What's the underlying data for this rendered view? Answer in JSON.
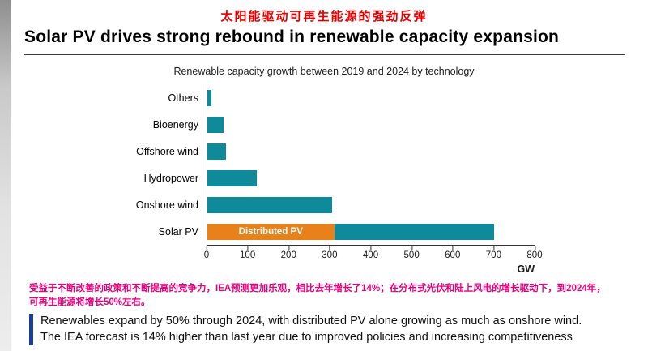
{
  "colors": {
    "accent_red": "#e60000",
    "note_pink": "#e6007e",
    "note_border_blue": "#1b3f94",
    "bar_teal": "#0e8a9b",
    "segment_orange": "#e8811a"
  },
  "header": {
    "chinese_title": "太阳能驱动可再生能源的强劲反弹",
    "title": "Solar PV drives strong rebound in renewable capacity expansion"
  },
  "chart_data": {
    "type": "bar",
    "orientation": "horizontal",
    "title": "Renewable capacity growth between 2019 and 2024 by technology",
    "categories": [
      "Others",
      "Bioenergy",
      "Offshore wind",
      "Hydropower",
      "Onshore wind",
      "Solar PV"
    ],
    "values": [
      10,
      40,
      45,
      120,
      305,
      700
    ],
    "segment": {
      "category": "Solar PV",
      "label": "Distributed PV",
      "value": 310,
      "color": "#e8811a"
    },
    "xlabel": "GW",
    "xlim": [
      0,
      800
    ],
    "xticks": [
      0,
      100,
      200,
      300,
      400,
      500,
      600,
      700,
      800
    ],
    "bar_color": "#0e8a9b",
    "grid": false,
    "legend": false
  },
  "notes": {
    "chinese_note": "受益于不断改善的政策和不断提高的竞争力，IEA预测更加乐观，相比去年增长了14%；在分布式光伏和陆上风电的增长驱动下，到2024年，可再生能源将增长50%左右。",
    "english_line1": "Renewables expand by 50% through 2024, with distributed PV alone growing as much as onshore wind.",
    "english_line2": "The IEA forecast is 14% higher than last year due to improved policies and increasing competitiveness"
  }
}
